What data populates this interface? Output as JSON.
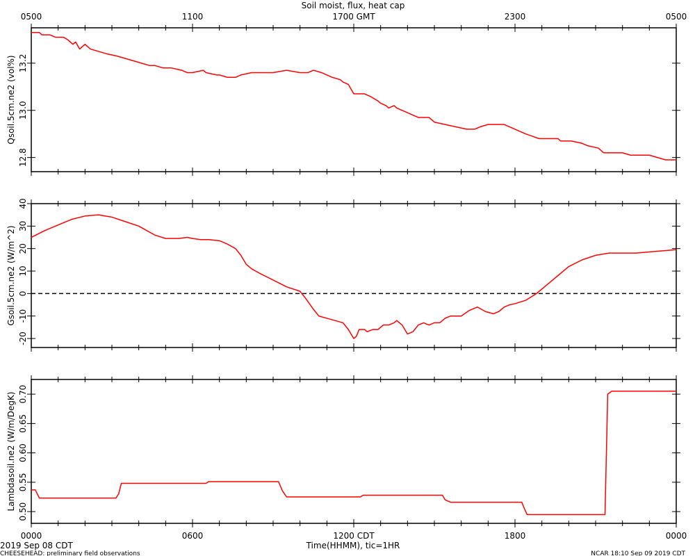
{
  "page": {
    "title": "Soil moist, flux, heat cap",
    "footer_date": "2019 Sep 08 CDT",
    "footer_left": "CHEESEHEAD: preliminary field observations",
    "footer_right": "NCAR 18:10 Sep 09 2019 CDT",
    "x_axis_label": "Time(HHMM), tic=1HR"
  },
  "colors": {
    "line": "#ff0000",
    "axis": "#000000",
    "zero_line": "#000000",
    "background": "#ffffff"
  },
  "chart_data": [
    {
      "type": "line",
      "ylabel": "Qsoil.5cm.ne2 (vol%)",
      "ylim": [
        12.74,
        13.35
      ],
      "yticks": [
        12.8,
        13.0,
        13.2
      ],
      "ytick_labels": [
        "12.8",
        "13.0",
        "13.2"
      ],
      "top_xticks": [
        0,
        6,
        12,
        18,
        24
      ],
      "top_xtick_labels": [
        "0500",
        "1100",
        "1700 GMT",
        "2300",
        "0500"
      ],
      "xlim": [
        0,
        24
      ],
      "series": [
        {
          "x": [
            0,
            0.3,
            0.4,
            0.7,
            0.9,
            1.2,
            1.35,
            1.55,
            1.65,
            1.7,
            1.8,
            2.0,
            2.2,
            2.5,
            2.8,
            3.2,
            3.5,
            3.8,
            4.1,
            4.4,
            4.6,
            4.9,
            5.2,
            5.6,
            5.8,
            6.0,
            6.4,
            6.5,
            6.9,
            7.0,
            7.3,
            7.6,
            7.8,
            8.2,
            8.5,
            8.7,
            9.0,
            9.5,
            10.0,
            10.3,
            10.5,
            10.8,
            11.2,
            11.5,
            11.6,
            11.8,
            12.0,
            12.4,
            12.6,
            12.9,
            13.0,
            13.2,
            13.3,
            13.5,
            13.6,
            14.0,
            14.4,
            14.8,
            15.0,
            15.4,
            15.8,
            16.2,
            16.5,
            16.7,
            17.0,
            17.2,
            17.6,
            17.8,
            18.2,
            18.4,
            18.9,
            19.2,
            19.6,
            19.7,
            20.0,
            20.1,
            20.5,
            20.7,
            21.1,
            21.3,
            21.7,
            22.0,
            22.3,
            22.7,
            23.0,
            23.3,
            23.6,
            24.0
          ],
          "y": [
            13.33,
            13.33,
            13.32,
            13.32,
            13.31,
            13.31,
            13.3,
            13.28,
            13.29,
            13.28,
            13.26,
            13.28,
            13.26,
            13.25,
            13.24,
            13.23,
            13.22,
            13.21,
            13.2,
            13.19,
            13.19,
            13.18,
            13.18,
            13.17,
            13.16,
            13.16,
            13.17,
            13.16,
            13.15,
            13.15,
            13.14,
            13.14,
            13.15,
            13.16,
            13.16,
            13.16,
            13.16,
            13.17,
            13.16,
            13.16,
            13.17,
            13.16,
            13.14,
            13.13,
            13.12,
            13.11,
            13.07,
            13.07,
            13.06,
            13.04,
            13.03,
            13.02,
            13.01,
            13.02,
            13.01,
            12.99,
            12.97,
            12.97,
            12.95,
            12.94,
            12.93,
            12.92,
            12.92,
            12.93,
            12.94,
            12.94,
            12.94,
            12.93,
            12.91,
            12.9,
            12.88,
            12.88,
            12.88,
            12.87,
            12.87,
            12.87,
            12.86,
            12.85,
            12.84,
            12.82,
            12.82,
            12.82,
            12.81,
            12.81,
            12.81,
            12.8,
            12.79,
            12.79
          ]
        }
      ]
    },
    {
      "type": "line",
      "ylabel": "Gsoil.5cm.ne2 (W/m^2)",
      "ylim": [
        -24,
        40
      ],
      "yticks": [
        -20,
        -10,
        0,
        10,
        20,
        30,
        40
      ],
      "ytick_labels": [
        "-20",
        "-10",
        "0",
        "10",
        "20",
        "30",
        "40"
      ],
      "zero_line": 0,
      "xlim": [
        0,
        24
      ],
      "series": [
        {
          "x": [
            0,
            0.5,
            1.0,
            1.5,
            2.0,
            2.5,
            3.0,
            3.5,
            4.0,
            4.3,
            4.6,
            5.0,
            5.5,
            5.8,
            6.0,
            6.3,
            6.6,
            7.0,
            7.3,
            7.6,
            7.8,
            8.0,
            8.2,
            8.5,
            9.0,
            9.5,
            10.0,
            10.2,
            10.5,
            10.7,
            11.0,
            11.3,
            11.6,
            11.8,
            12.0,
            12.1,
            12.2,
            12.4,
            12.5,
            12.7,
            12.9,
            13.1,
            13.3,
            13.5,
            13.6,
            13.8,
            14.0,
            14.2,
            14.4,
            14.6,
            14.8,
            15.0,
            15.2,
            15.4,
            15.6,
            15.8,
            16.0,
            16.3,
            16.6,
            16.9,
            17.2,
            17.4,
            17.6,
            17.8,
            18.0,
            18.4,
            18.8,
            19.2,
            19.6,
            20.0,
            20.5,
            21.0,
            21.5,
            22.0,
            22.5,
            23.0,
            23.5,
            24.0
          ],
          "y": [
            25,
            28,
            30.5,
            33,
            34.5,
            35,
            34,
            32,
            30,
            28,
            26,
            24.5,
            24.5,
            25,
            24.5,
            24,
            24,
            23.5,
            22,
            20,
            17,
            13,
            11,
            9,
            6,
            3,
            1,
            -2,
            -7,
            -10,
            -11,
            -12,
            -13,
            -16,
            -20,
            -19,
            -16,
            -16,
            -17,
            -16,
            -16,
            -14,
            -14,
            -13,
            -12,
            -14,
            -18,
            -17,
            -14,
            -13,
            -14,
            -13,
            -13,
            -11,
            -10,
            -10,
            -10,
            -7.5,
            -6,
            -8,
            -9,
            -8,
            -6,
            -5,
            -4.5,
            -3,
            0,
            4,
            8,
            12,
            15,
            17,
            18,
            18,
            18,
            18.5,
            19,
            19.5
          ]
        }
      ]
    },
    {
      "type": "line",
      "ylabel": "Lambdasoil.ne2 (W/m/DegK)",
      "ylim": [
        0.48,
        0.725
      ],
      "yticks": [
        0.5,
        0.55,
        0.6,
        0.65,
        0.7
      ],
      "ytick_labels": [
        "0.50",
        "0.55",
        "0.60",
        "0.65",
        "0.70"
      ],
      "bottom_xticks": [
        0,
        6,
        12,
        18,
        24
      ],
      "bottom_xtick_labels": [
        "0000",
        "0600",
        "1200 CDT",
        "1800",
        "0000"
      ],
      "xlim": [
        0,
        24
      ],
      "series": [
        {
          "x": [
            0,
            0.15,
            0.3,
            3.15,
            3.25,
            3.35,
            6.5,
            6.6,
            9.2,
            9.35,
            9.5,
            12.25,
            12.35,
            15.3,
            15.4,
            15.6,
            18.25,
            18.35,
            18.45,
            21.35,
            21.45,
            21.6,
            24.0
          ],
          "y": [
            0.537,
            0.537,
            0.523,
            0.523,
            0.53,
            0.548,
            0.548,
            0.551,
            0.551,
            0.535,
            0.525,
            0.525,
            0.528,
            0.528,
            0.52,
            0.516,
            0.516,
            0.505,
            0.495,
            0.495,
            0.7,
            0.705,
            0.705
          ]
        }
      ]
    }
  ]
}
